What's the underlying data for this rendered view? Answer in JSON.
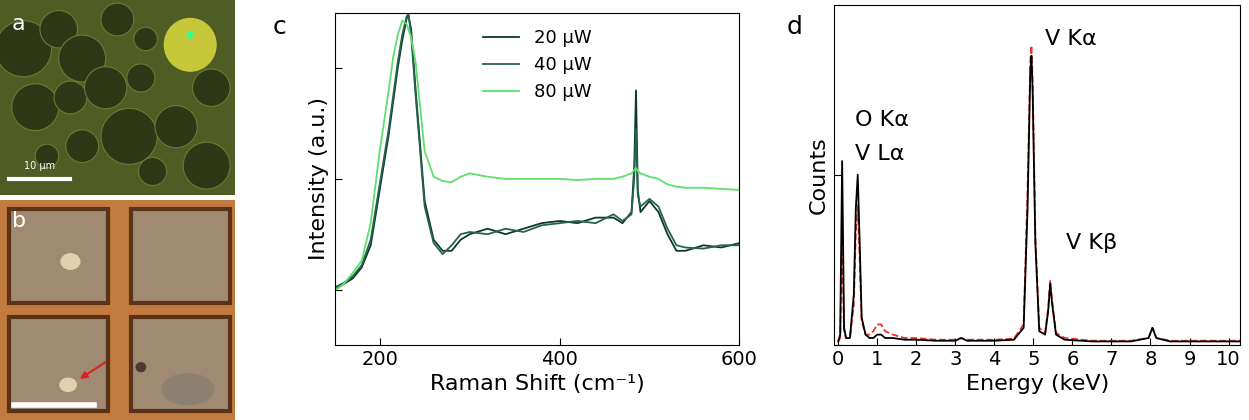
{
  "images": [
    {
      "panel": "a",
      "scale_bar": "10 µm"
    },
    {
      "panel": "b"
    }
  ],
  "chart_data": [
    {
      "panel": "c",
      "type": "line",
      "x_label": "Raman Shift (cm⁻¹)",
      "y_label": "Intensity (a.u.)",
      "x": [
        150,
        160,
        170,
        180,
        190,
        200,
        210,
        215,
        220,
        225,
        230,
        232,
        235,
        240,
        250,
        260,
        270,
        280,
        290,
        300,
        320,
        340,
        360,
        380,
        400,
        420,
        440,
        460,
        470,
        480,
        483,
        485,
        487,
        490,
        500,
        510,
        520,
        530,
        540,
        560,
        580,
        600
      ],
      "xlim": [
        150,
        600
      ],
      "xticks": [
        200,
        400,
        600
      ],
      "ylim": [
        0,
        3
      ],
      "yticks": [
        0.5,
        1.5,
        2.5
      ],
      "tick_labels": "x",
      "legend": "upper center",
      "series": [
        {
          "name": "20 μW",
          "color": "#0b3a2c",
          "line_style": "solid",
          "values": [
            0.5,
            0.55,
            0.6,
            0.7,
            0.9,
            1.4,
            1.9,
            2.2,
            2.5,
            2.75,
            2.95,
            2.98,
            2.85,
            2.3,
            1.3,
            0.95,
            0.85,
            0.85,
            0.95,
            1.0,
            1.05,
            1.0,
            1.05,
            1.1,
            1.12,
            1.1,
            1.15,
            1.15,
            1.1,
            1.2,
            1.6,
            2.3,
            1.4,
            1.2,
            1.3,
            1.2,
            1.0,
            0.85,
            0.85,
            0.9,
            0.88,
            0.92
          ]
        },
        {
          "name": "40 μW",
          "color": "#27634c",
          "line_style": "solid",
          "values": [
            0.52,
            0.56,
            0.62,
            0.72,
            0.95,
            1.45,
            1.95,
            2.25,
            2.55,
            2.8,
            2.97,
            2.99,
            2.8,
            2.25,
            1.25,
            0.92,
            0.82,
            0.9,
            1.0,
            1.02,
            1.0,
            1.05,
            1.02,
            1.08,
            1.1,
            1.12,
            1.1,
            1.18,
            1.12,
            1.18,
            1.5,
            1.95,
            1.35,
            1.25,
            1.32,
            1.25,
            1.05,
            0.9,
            0.88,
            0.87,
            0.9,
            0.9
          ]
        },
        {
          "name": "80 μW",
          "color": "#5ee06a",
          "line_style": "solid",
          "values": [
            0.49,
            0.55,
            0.65,
            0.76,
            1.1,
            1.75,
            2.3,
            2.6,
            2.8,
            2.93,
            2.9,
            2.85,
            2.78,
            2.55,
            1.75,
            1.52,
            1.48,
            1.47,
            1.52,
            1.55,
            1.52,
            1.5,
            1.5,
            1.5,
            1.5,
            1.49,
            1.5,
            1.5,
            1.52,
            1.55,
            1.58,
            1.6,
            1.57,
            1.55,
            1.52,
            1.5,
            1.45,
            1.43,
            1.42,
            1.42,
            1.41,
            1.4
          ]
        }
      ]
    },
    {
      "panel": "d",
      "type": "line",
      "x_label": "Energy (keV)",
      "y_label": "Counts",
      "x": [
        0,
        0.05,
        0.1,
        0.15,
        0.2,
        0.3,
        0.4,
        0.45,
        0.5,
        0.55,
        0.6,
        0.7,
        0.8,
        0.9,
        1.0,
        1.1,
        1.2,
        1.4,
        1.7,
        2.0,
        2.5,
        3.0,
        3.15,
        3.3,
        3.6,
        4.0,
        4.5,
        4.75,
        4.85,
        4.92,
        4.95,
        4.98,
        5.05,
        5.15,
        5.3,
        5.38,
        5.43,
        5.48,
        5.58,
        5.8,
        6.5,
        7.5,
        7.95,
        8.05,
        8.15,
        8.5,
        9.0,
        10.0,
        10.3
      ],
      "xlim": [
        -0.1,
        10.3
      ],
      "xticks": [
        0,
        1,
        2,
        3,
        4,
        5,
        6,
        7,
        8,
        9,
        10
      ],
      "ylim": [
        0,
        1
      ],
      "yticks": [
        0,
        0.5
      ],
      "tick_labels": "x",
      "annotations": [
        "O Kα",
        "V Lα",
        "V Kα",
        "V Kβ"
      ],
      "series": [
        {
          "color": "#e8312f",
          "line_style": "dashed",
          "values": [
            0.01,
            0.02,
            0.3,
            0.04,
            0.02,
            0.02,
            0.12,
            0.33,
            0.41,
            0.25,
            0.07,
            0.03,
            0.03,
            0.04,
            0.06,
            0.06,
            0.04,
            0.03,
            0.02,
            0.02,
            0.015,
            0.015,
            0.02,
            0.015,
            0.015,
            0.015,
            0.018,
            0.06,
            0.45,
            0.83,
            0.88,
            0.78,
            0.32,
            0.05,
            0.035,
            0.11,
            0.19,
            0.13,
            0.035,
            0.02,
            0.012,
            0.012,
            0.02,
            0.05,
            0.02,
            0.012,
            0.012,
            0.012,
            0.012
          ]
        },
        {
          "color": "#000000",
          "line_style": "solid",
          "values": [
            0.01,
            0.03,
            0.54,
            0.05,
            0.02,
            0.02,
            0.15,
            0.4,
            0.5,
            0.3,
            0.08,
            0.03,
            0.02,
            0.02,
            0.03,
            0.03,
            0.02,
            0.02,
            0.015,
            0.015,
            0.012,
            0.012,
            0.02,
            0.012,
            0.012,
            0.012,
            0.015,
            0.05,
            0.4,
            0.8,
            0.85,
            0.75,
            0.3,
            0.04,
            0.03,
            0.1,
            0.18,
            0.12,
            0.03,
            0.015,
            0.01,
            0.01,
            0.02,
            0.05,
            0.02,
            0.01,
            0.01,
            0.01,
            0.01
          ]
        }
      ]
    }
  ]
}
